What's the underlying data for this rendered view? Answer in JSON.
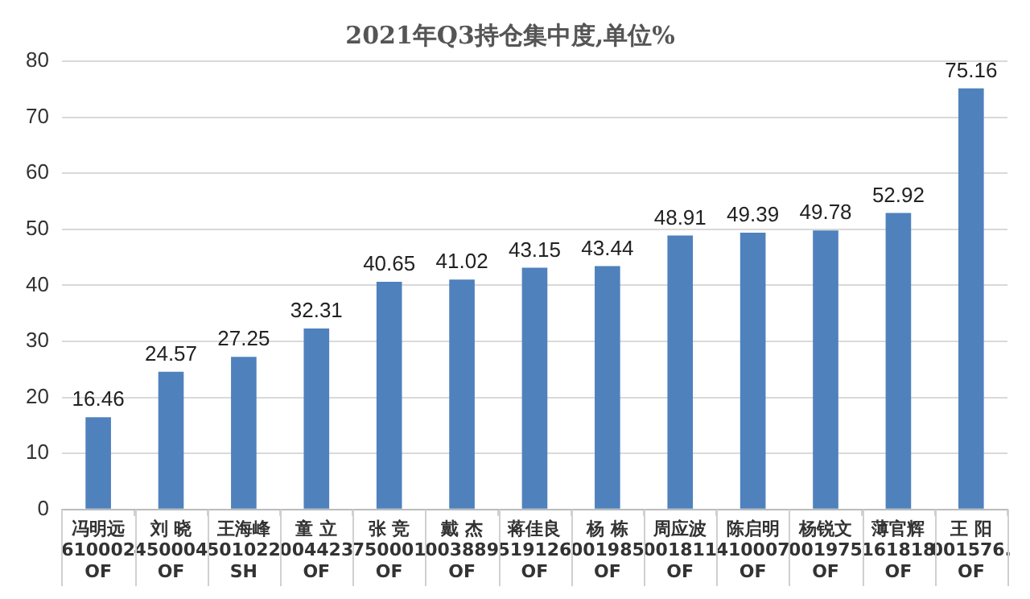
{
  "chart_data": {
    "type": "bar",
    "title": "2021年Q3持仓集中度,单位%",
    "categories": [
      "冯明远\n610002\nOF",
      "刘 晓\n450004\nOF",
      "王海峰\n501022\nSH",
      "童 立\n004423\nOF",
      "张 竞\n750001\nOF",
      "戴 杰\n003889\nOF",
      "蒋佳良\n519126\nOF",
      "杨 栋\n001985\nOF",
      "周应波\n001811\nOF",
      "陈启明\n410007\nOF",
      "杨锐文\n001975\nOF",
      "薄官辉\n161818\nOF",
      "王 阳\n001576.\nOF"
    ],
    "values": [
      16.46,
      24.57,
      27.25,
      32.31,
      40.65,
      41.02,
      43.15,
      43.44,
      48.91,
      49.39,
      49.78,
      52.92,
      75.16
    ],
    "color": "#4f81bd",
    "ylim": [
      0,
      80
    ],
    "yticks": [
      0,
      10,
      20,
      30,
      40,
      50,
      60,
      70,
      80
    ],
    "grid": "y",
    "data_labels": true,
    "legend": false
  }
}
